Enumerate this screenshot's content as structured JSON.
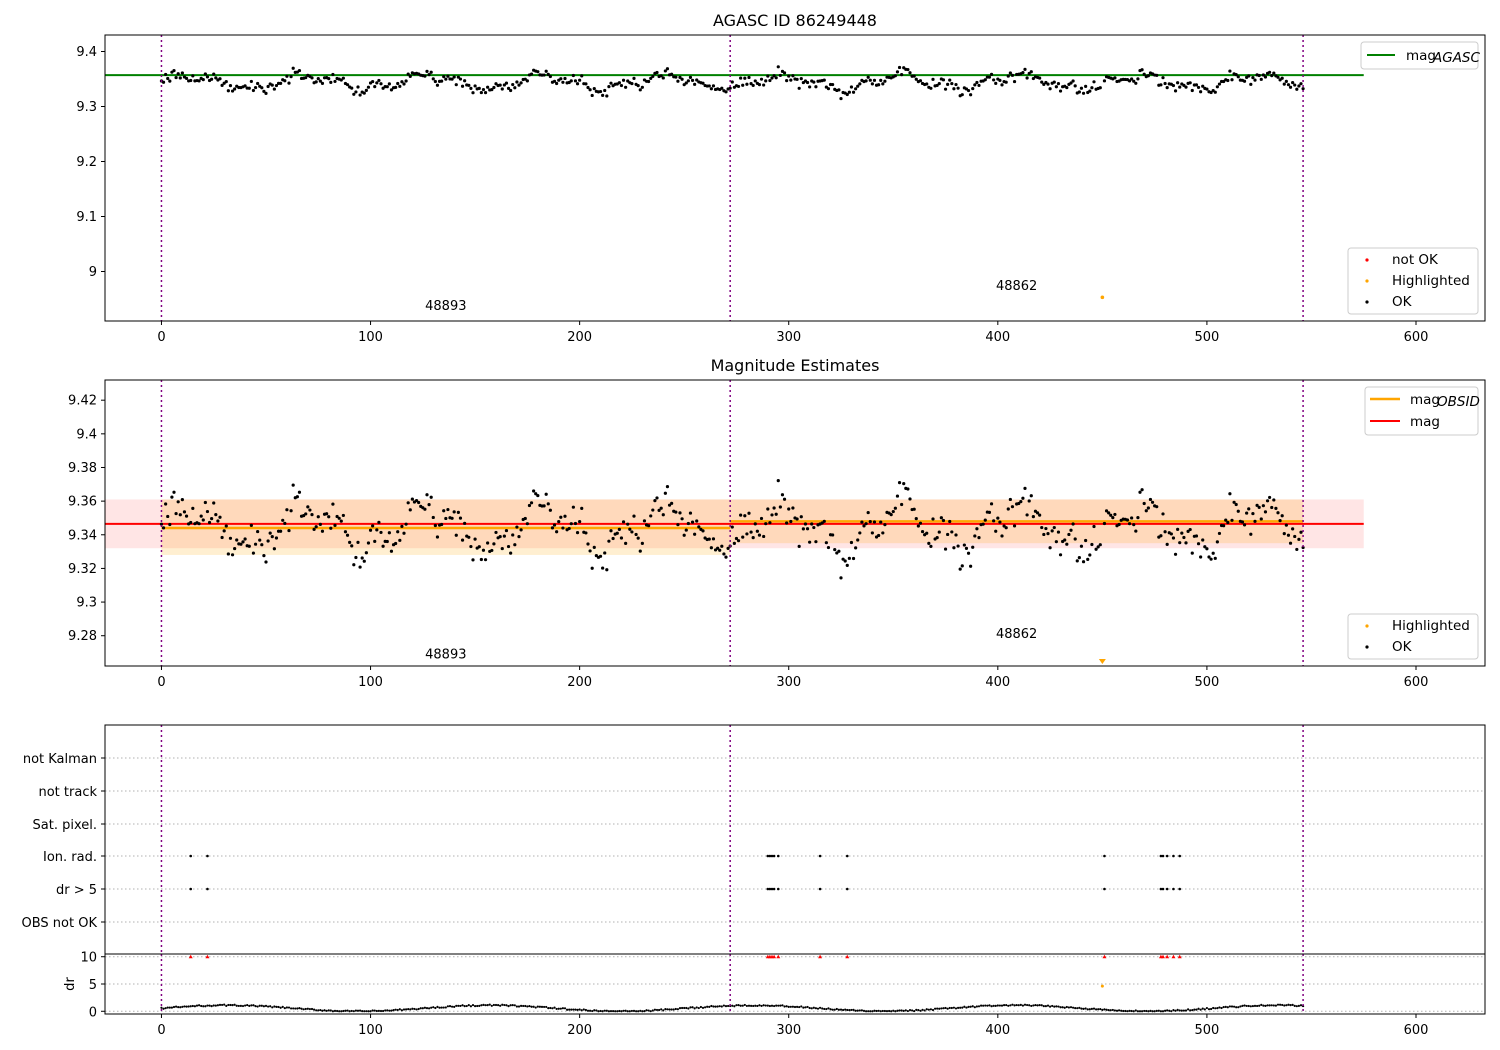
{
  "chart_data": [
    {
      "type": "scatter",
      "title": "AGASC ID 86249448",
      "xlim": [
        -27,
        633
      ],
      "ylim": [
        8.91,
        9.43
      ],
      "x_ticks": [
        0,
        100,
        200,
        300,
        400,
        500,
        600
      ],
      "y_ticks": [
        9.0,
        9.1,
        9.2,
        9.3,
        9.4
      ],
      "grid": false,
      "obsid_boundaries": [
        0,
        272,
        546
      ],
      "text_annotations": [
        {
          "text": "48893",
          "x": 136,
          "y": 8.93
        },
        {
          "text": "48862",
          "x": 409,
          "y": 8.966
        }
      ],
      "lines": [
        {
          "name": "mag",
          "subscript": "AGASC",
          "color": "#008000",
          "y": 9.357,
          "x_range": [
            -27,
            575
          ]
        }
      ],
      "series": [
        {
          "name": "not OK",
          "color": "#ff0000",
          "points": []
        },
        {
          "name": "Highlighted",
          "color": "#ffa500",
          "points": [
            [
              450,
              8.953
            ]
          ]
        },
        {
          "name": "OK",
          "color": "#000000",
          "points": []
        }
      ],
      "legend": [
        {
          "placement": "top-right",
          "entries": [
            "mag_AGASC"
          ]
        },
        {
          "placement": "bottom-right",
          "entries": [
            "not OK",
            "Highlighted",
            "OK"
          ]
        }
      ]
    },
    {
      "type": "scatter",
      "title": "Magnitude Estimates",
      "xlim": [
        -27,
        633
      ],
      "ylim": [
        9.262,
        9.432
      ],
      "x_ticks": [
        0,
        100,
        200,
        300,
        400,
        500,
        600
      ],
      "y_ticks": [
        9.28,
        9.3,
        9.32,
        9.34,
        9.36,
        9.38,
        9.4,
        9.42
      ],
      "grid": false,
      "obsid_boundaries": [
        0,
        272,
        546
      ],
      "text_annotations": [
        {
          "text": "48893",
          "x": 136,
          "y": 9.2665
        },
        {
          "text": "48862",
          "x": 409,
          "y": 9.2785
        }
      ],
      "bands": [
        {
          "color": "#ff0000",
          "opacity": 0.1,
          "y_low": 9.332,
          "y_high": 9.361,
          "x_range": [
            -27,
            575
          ]
        },
        {
          "color": "#ffa500",
          "opacity": 0.18,
          "y_low": 9.328,
          "y_high": 9.361,
          "x_range": [
            0,
            272
          ]
        },
        {
          "color": "#ffa500",
          "opacity": 0.18,
          "y_low": 9.335,
          "y_high": 9.361,
          "x_range": [
            272,
            546
          ]
        }
      ],
      "lines": [
        {
          "name": "mag",
          "subscript": "OBSID",
          "color": "#ffa500",
          "segments": [
            {
              "x": [
                0,
                272
              ],
              "y": 9.344
            },
            {
              "x": [
                272,
                546
              ],
              "y": 9.348
            }
          ]
        },
        {
          "name": "mag",
          "color": "#ff0000",
          "y": 9.3465,
          "x_range": [
            -27,
            575
          ]
        }
      ],
      "series": [
        {
          "name": "Highlighted",
          "color": "#ffa500",
          "points": [
            [
              450,
              9.2635
            ]
          ]
        },
        {
          "name": "OK",
          "color": "#000000",
          "points": []
        }
      ],
      "legend": [
        {
          "placement": "top-right",
          "entries": [
            "mag_OBSID",
            "mag"
          ]
        },
        {
          "placement": "bottom-right",
          "entries": [
            "Highlighted",
            "OK"
          ]
        }
      ]
    },
    {
      "type": "scatter",
      "xlim": [
        -27,
        633
      ],
      "x_ticks": [
        0,
        100,
        200,
        300,
        400,
        500,
        600
      ],
      "obsid_boundaries": [
        0,
        272,
        546
      ],
      "flag_rows": [
        "not Kalman",
        "not track",
        "Sat. pixel.",
        "Ion. rad.",
        "dr > 5",
        "OBS not OK"
      ],
      "flags": {
        "Ion. rad.": [
          14,
          22,
          290,
          291,
          292,
          293,
          295,
          315,
          328,
          451,
          478,
          479,
          481,
          484,
          487
        ],
        "dr > 5": [
          14,
          22,
          290,
          291,
          292,
          293,
          295,
          315,
          328,
          451,
          478,
          479,
          481,
          484,
          487
        ]
      },
      "dr_panel": {
        "ylabel": "dr",
        "ylim": [
          -0.5,
          10.5
        ],
        "y_ticks": [
          0,
          5,
          10
        ],
        "clipped_points": [
          14,
          22,
          290,
          291,
          292,
          293,
          295,
          315,
          328,
          451,
          478,
          479,
          481,
          484,
          487
        ],
        "outliers": [
          [
            450,
            4.6
          ]
        ]
      }
    }
  ],
  "legend_labels": {
    "top_mag": "mag",
    "top_mag_sub": "AGASC",
    "mid_mag_obsid": "mag",
    "mid_mag_obsid_sub": "OBSID",
    "mid_mag": "mag",
    "not_ok": "not OK",
    "highlighted": "Highlighted",
    "ok": "OK"
  }
}
